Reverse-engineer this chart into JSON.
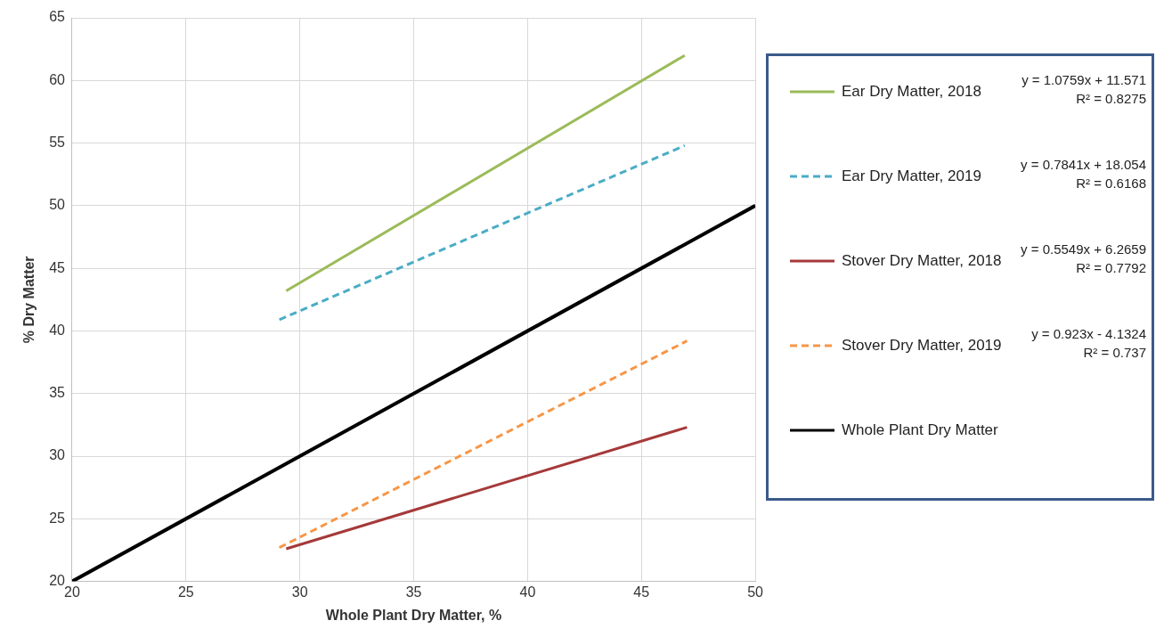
{
  "chart_data": {
    "type": "line",
    "xlabel": "Whole Plant Dry Matter, %",
    "ylabel": "% Dry Matter",
    "xlim": [
      20,
      50
    ],
    "xticks": [
      20,
      25,
      30,
      35,
      40,
      45,
      50
    ],
    "ylim": [
      20,
      65
    ],
    "yticks": [
      20,
      25,
      30,
      35,
      40,
      45,
      50,
      55,
      60,
      65
    ],
    "grid": true,
    "legend": "right",
    "marker": "none",
    "series": [
      {
        "name": "Ear Dry Matter, 2018",
        "color": "#9bbb59",
        "line_style": "solid",
        "x": [
          29.4,
          46.9
        ],
        "values": [
          43.2,
          62.0
        ]
      },
      {
        "name": "Ear Dry Matter, 2019",
        "color": "#4bacc6",
        "line_style": "dashed",
        "x": [
          29.1,
          46.9
        ],
        "values": [
          40.9,
          54.8
        ]
      },
      {
        "name": "Stover Dry Matter, 2018",
        "color": "#a5393a",
        "line_style": "solid",
        "x": [
          29.4,
          47.0
        ],
        "values": [
          22.6,
          32.3
        ]
      },
      {
        "name": "Stover Dry Matter, 2019",
        "color": "#f79646",
        "line_style": "dashed",
        "x": [
          29.1,
          47.0
        ],
        "values": [
          22.7,
          39.2
        ]
      },
      {
        "name": "Whole Plant Dry Matter",
        "color": "#000000",
        "line_style": "solid",
        "x": [
          20,
          50
        ],
        "values": [
          20,
          50
        ]
      }
    ],
    "annotations": [
      "y = 1.0759x + 11.571\nR² = 0.8275",
      "y = 0.7841x + 18.054\nR² = 0.6168",
      "y = 0.5549x + 6.2659\nR² = 0.7792",
      "y = 0.923x - 4.1324\nR² = 0.737"
    ]
  }
}
